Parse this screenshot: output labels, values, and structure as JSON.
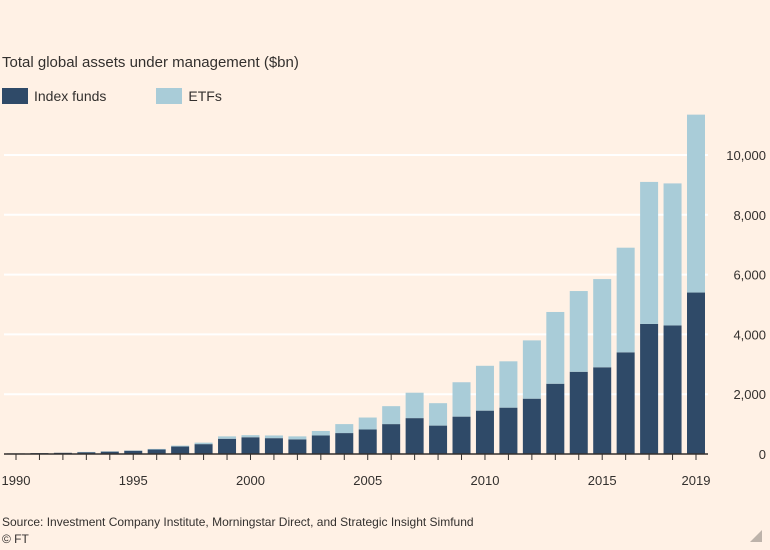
{
  "colors": {
    "background": "#fff1e5",
    "index_funds": "#2f4a68",
    "etfs": "#a9ccd8",
    "gridline": "#ffffff",
    "axis": "#33302e",
    "text": "#33302e"
  },
  "source": "Source: Investment Company Institute, Morningstar Direct, and Strategic Insight Simfund",
  "credit": "© FT",
  "chart_data": {
    "type": "bar",
    "stacked": true,
    "title": "Total global assets under management ($bn)",
    "xlabel": "",
    "ylabel": "",
    "ylim": [
      0,
      11500
    ],
    "y_ticks": [
      0,
      2000,
      4000,
      6000,
      8000,
      10000
    ],
    "y_tick_labels": [
      "0",
      "2,000",
      "4,000",
      "6,000",
      "8,000",
      "10,000"
    ],
    "y_axis_position": "right",
    "grid": true,
    "legend_position": "top-left",
    "categories": [
      1990,
      1991,
      1992,
      1993,
      1994,
      1995,
      1996,
      1997,
      1998,
      1999,
      2000,
      2001,
      2002,
      2003,
      2004,
      2005,
      2006,
      2007,
      2008,
      2009,
      2010,
      2011,
      2012,
      2013,
      2014,
      2015,
      2016,
      2017,
      2018,
      2019
    ],
    "x_tick_labels": [
      {
        "value": 1990,
        "label": "1990"
      },
      {
        "value": 1995,
        "label": "1995"
      },
      {
        "value": 2000,
        "label": "2000"
      },
      {
        "value": 2005,
        "label": "2005"
      },
      {
        "value": 2010,
        "label": "2010"
      },
      {
        "value": 2015,
        "label": "2015"
      },
      {
        "value": 2019,
        "label": "2019"
      }
    ],
    "series": [
      {
        "name": "Index funds",
        "color": "#2f4a68",
        "values": [
          20,
          30,
          40,
          60,
          80,
          110,
          150,
          250,
          330,
          510,
          560,
          530,
          490,
          620,
          700,
          820,
          1000,
          1200,
          950,
          1250,
          1450,
          1550,
          1850,
          2350,
          2750,
          2900,
          3400,
          4350,
          4300,
          5400
        ]
      },
      {
        "name": "ETFs",
        "color": "#a9ccd8",
        "values": [
          0,
          0,
          0,
          10,
          10,
          10,
          20,
          30,
          50,
          80,
          70,
          90,
          100,
          150,
          300,
          400,
          600,
          850,
          750,
          1150,
          1500,
          1550,
          1950,
          2400,
          2700,
          2950,
          3500,
          4750,
          4750,
          5950
        ]
      }
    ]
  }
}
